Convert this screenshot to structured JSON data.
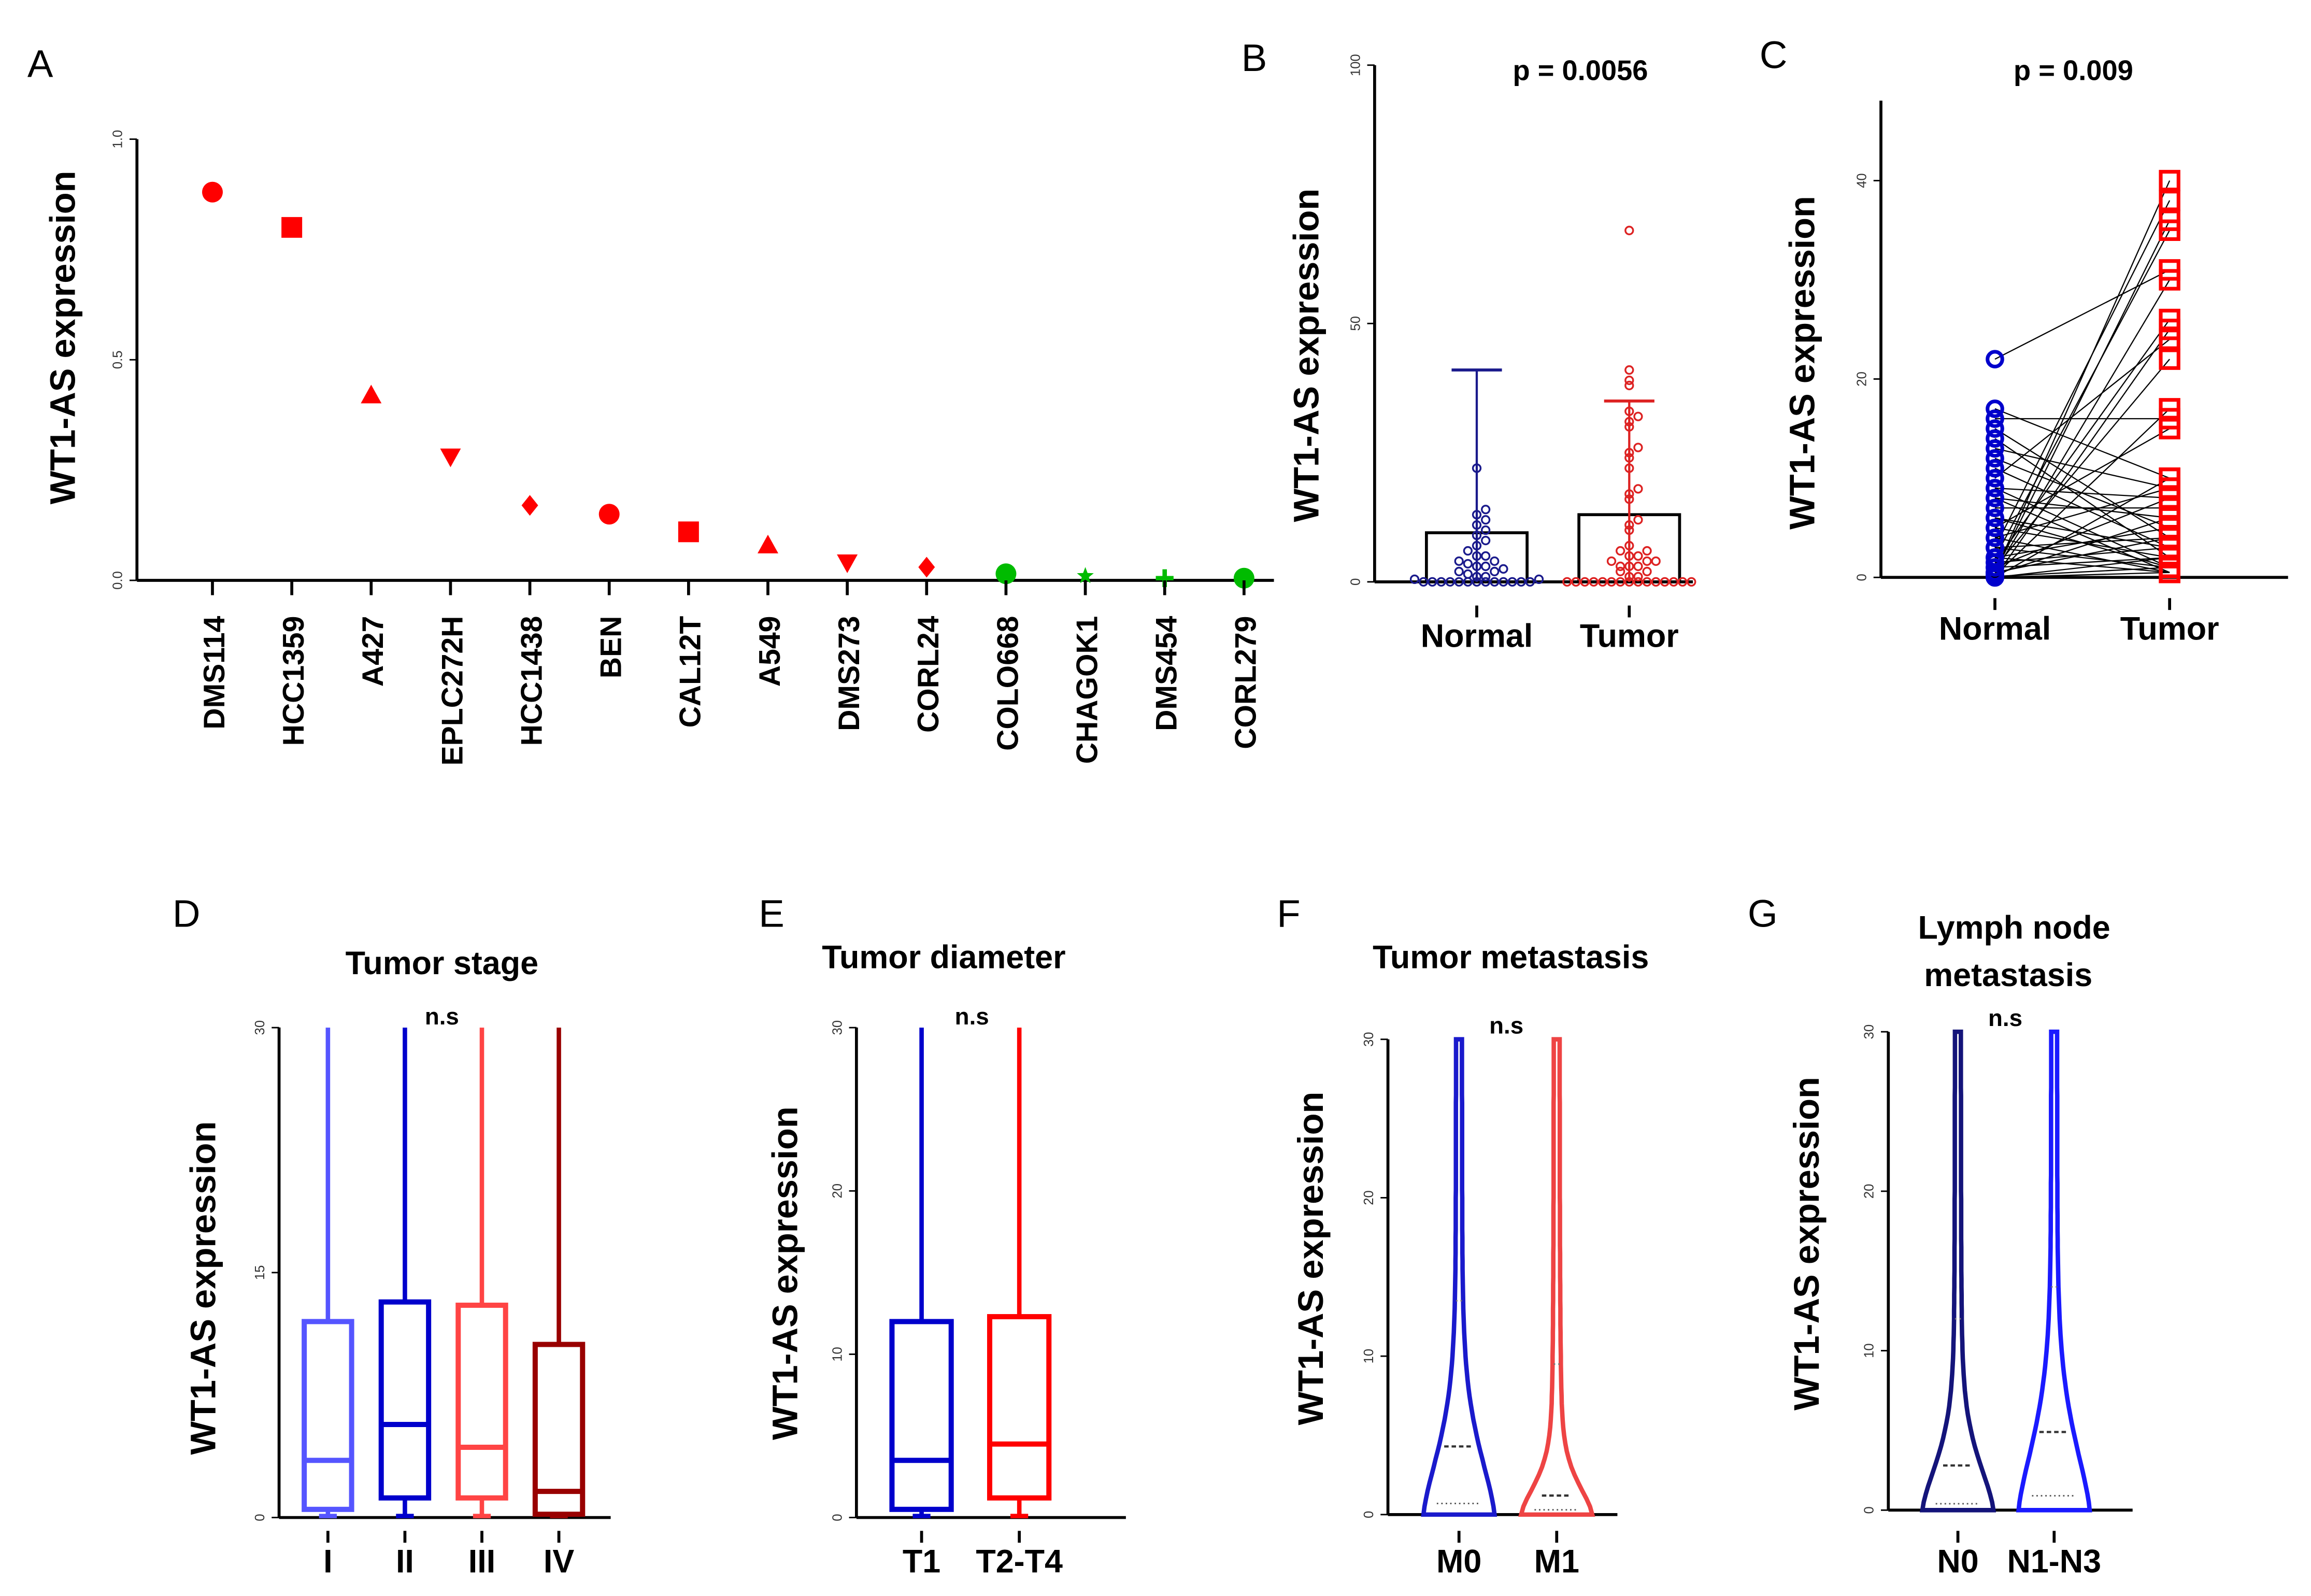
{
  "chart_data": [
    {
      "panel": "A",
      "type": "scatter",
      "ylabel": "WT1-AS  expression",
      "ylim": [
        0,
        1.0
      ],
      "yticks": [
        "0.0",
        "0.5",
        "1.0"
      ],
      "categories": [
        "DMS114",
        "HCC1359",
        "A427",
        "EPLC272H",
        "HCC1438",
        "BEN",
        "CAL12T",
        "A549",
        "DMS273",
        "CORL24",
        "COLO668",
        "CHAGOK1",
        "DMS454",
        "CORL279"
      ],
      "values": [
        0.88,
        0.8,
        0.42,
        0.28,
        0.17,
        0.15,
        0.11,
        0.08,
        0.04,
        0.03,
        0.015,
        0.01,
        0.005,
        0.005
      ],
      "markers": [
        "circle",
        "square",
        "triangle",
        "triangle-down",
        "diamond",
        "circle",
        "square",
        "triangle",
        "triangle-down",
        "diamond",
        "circle",
        "star",
        "plus",
        "circle"
      ],
      "colors": [
        "#ff0000",
        "#ff0000",
        "#ff0000",
        "#ff0000",
        "#ff0000",
        "#ff0000",
        "#ff0000",
        "#ff0000",
        "#ff0000",
        "#ff0000",
        "#00bb00",
        "#00bb00",
        "#00bb00",
        "#00bb00"
      ]
    },
    {
      "panel": "B",
      "type": "bar",
      "annotation": "p = 0.0056",
      "ylabel": "WT1-AS  expression",
      "ylim": [
        0,
        100
      ],
      "yticks": [
        "0",
        "50",
        "100"
      ],
      "categories": [
        "Normal",
        "Tumor"
      ],
      "series": [
        {
          "mean": 9.5,
          "error_top": 41,
          "color": "#1a1a8c",
          "points": [
            0,
            0,
            0,
            0,
            0,
            0,
            0,
            0,
            0,
            0,
            0,
            0,
            0,
            0.5,
            0.5,
            1,
            1,
            1.5,
            2,
            2,
            2.5,
            3,
            3,
            3.5,
            4,
            4,
            5,
            5,
            6,
            7,
            8,
            9,
            10,
            11,
            12,
            13,
            14,
            22
          ]
        },
        {
          "mean": 13,
          "error_top": 35,
          "color": "#dd2222",
          "points": [
            0,
            0,
            0,
            0,
            0,
            0,
            0,
            0,
            0,
            0,
            0,
            0,
            0,
            0,
            0,
            1,
            1,
            2,
            2,
            3,
            3,
            3,
            4,
            4,
            4,
            5,
            5,
            6,
            6,
            7,
            10,
            11,
            12,
            16,
            17,
            18,
            22,
            24,
            25,
            26,
            30,
            31,
            32,
            33,
            38,
            39,
            41,
            68
          ]
        }
      ]
    },
    {
      "panel": "C",
      "type": "line",
      "annotation": "p = 0.009",
      "ylabel": "WT1-AS  expression",
      "ylim": [
        0,
        48
      ],
      "yticks": [
        "0",
        "20",
        "40"
      ],
      "categories": [
        "Normal",
        "Tumor"
      ],
      "colors": {
        "normal": "#0000cc",
        "tumor": "#ff0000"
      },
      "pairs": [
        [
          22,
          31
        ],
        [
          17,
          10
        ],
        [
          16,
          16
        ],
        [
          15,
          4
        ],
        [
          14,
          2
        ],
        [
          13,
          9
        ],
        [
          12,
          5
        ],
        [
          11,
          3
        ],
        [
          10,
          24
        ],
        [
          9,
          1
        ],
        [
          9,
          8
        ],
        [
          8,
          6
        ],
        [
          8,
          0.5
        ],
        [
          7,
          7
        ],
        [
          6,
          3
        ],
        [
          6,
          1
        ],
        [
          5,
          15
        ],
        [
          5,
          2
        ],
        [
          4,
          9
        ],
        [
          4,
          0.5
        ],
        [
          3,
          4
        ],
        [
          3,
          38
        ],
        [
          3,
          1
        ],
        [
          2,
          5
        ],
        [
          2,
          35
        ],
        [
          2,
          0.5
        ],
        [
          1.5,
          26
        ],
        [
          1.5,
          3
        ],
        [
          1,
          22
        ],
        [
          1,
          8
        ],
        [
          1,
          2
        ],
        [
          0.5,
          40
        ],
        [
          0.5,
          36
        ],
        [
          0.5,
          30
        ],
        [
          0.5,
          4
        ],
        [
          0.3,
          6
        ],
        [
          0.2,
          17
        ],
        [
          0.1,
          1
        ],
        [
          0,
          10
        ],
        [
          0,
          25
        ],
        [
          0,
          0.5
        ],
        [
          0,
          2
        ]
      ]
    },
    {
      "panel": "D",
      "type": "box",
      "title": "Tumor stage",
      "annotation": "n.s",
      "ylabel": "WT1-AS  expression",
      "ylim": [
        0,
        30
      ],
      "yticks": [
        "0",
        "15",
        "30"
      ],
      "categories": [
        "I",
        "II",
        "III",
        "IV"
      ],
      "boxes": [
        {
          "min": 0,
          "q1": 0.5,
          "median": 3.5,
          "q3": 12.0,
          "max": 30,
          "color": "#5555ff"
        },
        {
          "min": 0,
          "q1": 1.2,
          "median": 5.7,
          "q3": 13.2,
          "max": 30,
          "color": "#0000cc"
        },
        {
          "min": 0,
          "q1": 1.2,
          "median": 4.3,
          "q3": 13.0,
          "max": 30,
          "color": "#ff4444"
        },
        {
          "min": 0,
          "q1": 0.2,
          "median": 1.6,
          "q3": 10.6,
          "max": 30,
          "color": "#990000"
        }
      ]
    },
    {
      "panel": "E",
      "type": "box",
      "title": "Tumor diameter",
      "annotation": "n.s",
      "ylabel": "WT1-AS  expression",
      "ylim": [
        0,
        30
      ],
      "yticks": [
        "0",
        "10",
        "20",
        "30"
      ],
      "categories": [
        "T1",
        "T2-T4"
      ],
      "boxes": [
        {
          "min": 0,
          "q1": 0.5,
          "median": 3.5,
          "q3": 12.0,
          "max": 30,
          "color": "#0000cc"
        },
        {
          "min": 0,
          "q1": 1.2,
          "median": 4.5,
          "q3": 12.3,
          "max": 30,
          "color": "#ff0000"
        }
      ]
    },
    {
      "panel": "F",
      "type": "violin",
      "title": "Tumor metastasis",
      "annotation": "n.s",
      "ylabel": "WT1-AS  expression",
      "ylim": [
        0,
        30
      ],
      "yticks": [
        "0",
        "10",
        "20",
        "30"
      ],
      "categories": [
        "M0",
        "M1"
      ],
      "violins": [
        {
          "median": 4.3,
          "q1": 0.7,
          "q3": 13.5,
          "max": 30,
          "color": "#1a1acc"
        },
        {
          "median": 1.2,
          "q1": 0.3,
          "q3": 9.5,
          "max": 30,
          "color": "#ee4444"
        }
      ]
    },
    {
      "panel": "G",
      "type": "violin",
      "title": "Lymph node metastasis",
      "title_lines": [
        "Lymph node",
        "metastasis"
      ],
      "annotation": "n.s",
      "ylabel": "WT1-AS  expression",
      "ylim": [
        0,
        30
      ],
      "yticks": [
        "0",
        "10",
        "20",
        "30"
      ],
      "categories": [
        "N0",
        "N1-N3"
      ],
      "violins": [
        {
          "median": 2.8,
          "q1": 0.4,
          "q3": 12,
          "max": 30,
          "color": "#14147a"
        },
        {
          "median": 4.9,
          "q1": 0.9,
          "q3": 14,
          "max": 30,
          "color": "#1a1aff"
        }
      ]
    }
  ]
}
